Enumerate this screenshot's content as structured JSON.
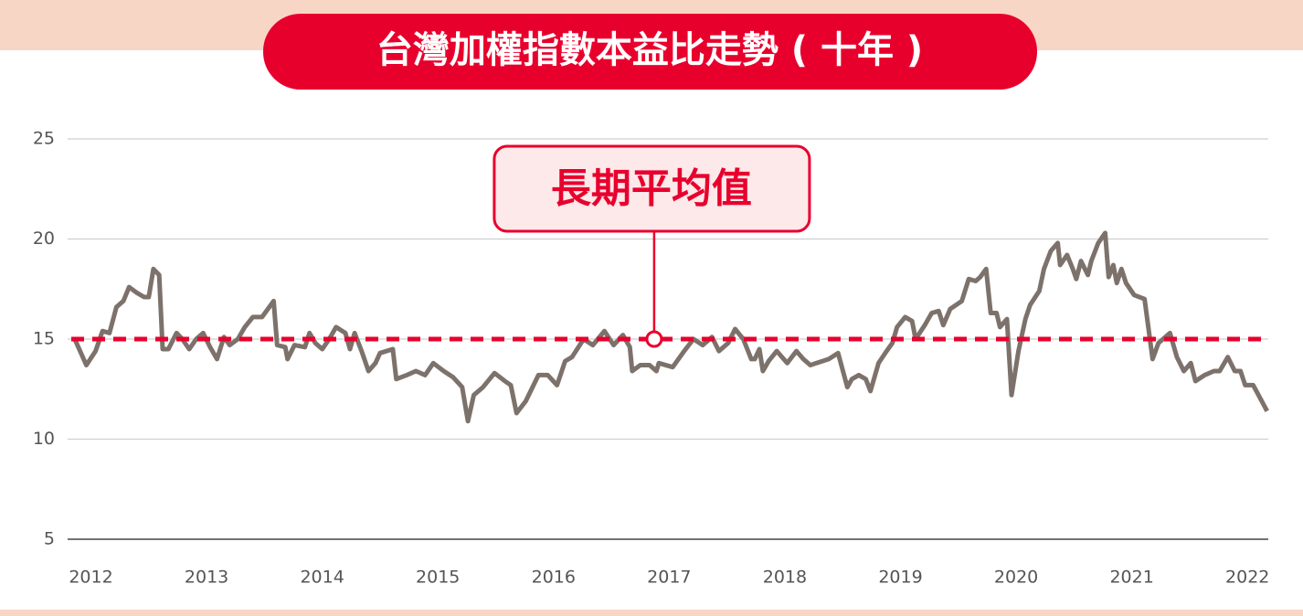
{
  "chart_data": {
    "type": "line",
    "title": "台灣加權指數本益比走勢 ( 十年 )",
    "color": "#7d726b",
    "xlim": [
      2011.83,
      2022.18
    ],
    "xticks": [
      2012,
      2013,
      2014,
      2015,
      2016,
      2017,
      2018,
      2019,
      2020,
      2021,
      2022
    ],
    "ylim": [
      5,
      25
    ],
    "yticks": [
      5,
      10,
      15,
      20,
      25
    ],
    "grid": true,
    "reference_line": {
      "value": 15,
      "label": "長期平均值",
      "label_x": 2016.87,
      "color": "#e8002d"
    },
    "x": [
      2011.86,
      2011.96,
      2012.04,
      2012.1,
      2012.16,
      2012.22,
      2012.28,
      2012.33,
      2012.4,
      2012.46,
      2012.5,
      2012.54,
      2012.59,
      2012.62,
      2012.67,
      2012.74,
      2012.79,
      2012.85,
      2012.91,
      2012.97,
      2013.03,
      2013.09,
      2013.15,
      2013.2,
      2013.27,
      2013.33,
      2013.4,
      2013.48,
      2013.58,
      2013.61,
      2013.68,
      2013.7,
      2013.76,
      2013.85,
      2013.89,
      2013.94,
      2014.0,
      2014.06,
      2014.12,
      2014.2,
      2014.24,
      2014.28,
      2014.34,
      2014.4,
      2014.46,
      2014.5,
      2014.61,
      2014.64,
      2014.73,
      2014.81,
      2014.89,
      2014.96,
      2015.05,
      2015.13,
      2015.21,
      2015.26,
      2015.31,
      2015.39,
      2015.49,
      2015.58,
      2015.63,
      2015.68,
      2015.76,
      2015.87,
      2015.95,
      2016.03,
      2016.1,
      2016.16,
      2016.26,
      2016.34,
      2016.44,
      2016.52,
      2016.6,
      2016.66,
      2016.68,
      2016.75,
      2016.83,
      2016.89,
      2016.91,
      2017.03,
      2017.13,
      2017.21,
      2017.29,
      2017.37,
      2017.43,
      2017.51,
      2017.57,
      2017.64,
      2017.71,
      2017.74,
      2017.78,
      2017.81,
      2017.86,
      2017.93,
      2018.02,
      2018.1,
      2018.16,
      2018.22,
      2018.38,
      2018.46,
      2018.54,
      2018.58,
      2018.64,
      2018.7,
      2018.74,
      2018.81,
      2018.88,
      2018.93,
      2018.97,
      2019.04,
      2019.1,
      2019.13,
      2019.21,
      2019.27,
      2019.33,
      2019.37,
      2019.43,
      2019.53,
      2019.59,
      2019.65,
      2019.69,
      2019.74,
      2019.78,
      2019.83,
      2019.86,
      2019.92,
      2019.96,
      2020.02,
      2020.08,
      2020.12,
      2020.2,
      2020.24,
      2020.3,
      2020.36,
      2020.38,
      2020.44,
      2020.49,
      2020.52,
      2020.56,
      2020.62,
      2020.65,
      2020.71,
      2020.77,
      2020.8,
      2020.84,
      2020.87,
      2020.91,
      2020.95,
      2021.02,
      2021.11,
      2021.18,
      2021.23,
      2021.33,
      2021.39,
      2021.45,
      2021.51,
      2021.55,
      2021.63,
      2021.71,
      2021.76,
      2021.83,
      2021.89,
      2021.94,
      2021.98,
      2022.05,
      2022.17
    ],
    "values": [
      15.0,
      13.7,
      14.4,
      15.4,
      15.3,
      16.6,
      16.9,
      17.6,
      17.3,
      17.1,
      17.1,
      18.5,
      18.2,
      14.5,
      14.5,
      15.3,
      15.0,
      14.5,
      15.0,
      15.3,
      14.6,
      14.0,
      15.1,
      14.7,
      15.0,
      15.6,
      16.1,
      16.1,
      16.9,
      14.7,
      14.6,
      14.0,
      14.7,
      14.6,
      15.3,
      14.8,
      14.5,
      15.0,
      15.6,
      15.3,
      14.5,
      15.3,
      14.4,
      13.4,
      13.8,
      14.3,
      14.5,
      13.0,
      13.2,
      13.4,
      13.2,
      13.8,
      13.4,
      13.1,
      12.6,
      10.9,
      12.2,
      12.6,
      13.3,
      12.9,
      12.7,
      11.3,
      11.9,
      13.2,
      13.2,
      12.7,
      13.9,
      14.1,
      15.0,
      14.7,
      15.4,
      14.7,
      15.2,
      14.6,
      13.4,
      13.7,
      13.7,
      13.4,
      13.8,
      13.6,
      14.4,
      15.0,
      14.7,
      15.1,
      14.4,
      14.8,
      15.5,
      15.0,
      14.0,
      14.0,
      14.5,
      13.4,
      13.9,
      14.4,
      13.8,
      14.4,
      14.0,
      13.7,
      14.0,
      14.3,
      12.6,
      13.0,
      13.2,
      13.0,
      12.4,
      13.8,
      14.4,
      14.8,
      15.6,
      16.1,
      15.9,
      15.0,
      15.7,
      16.3,
      16.4,
      15.7,
      16.5,
      16.9,
      18.0,
      17.9,
      18.1,
      18.5,
      16.3,
      16.3,
      15.6,
      16.0,
      12.2,
      14.4,
      16.0,
      16.7,
      17.4,
      18.5,
      19.4,
      19.8,
      18.7,
      19.2,
      18.5,
      18.0,
      18.9,
      18.2,
      18.9,
      19.8,
      20.3,
      18.1,
      18.7,
      17.8,
      18.5,
      17.8,
      17.2,
      17.0,
      14.0,
      14.8,
      15.3,
      14.1,
      13.4,
      13.8,
      12.9,
      13.2,
      13.4,
      13.4,
      14.1,
      13.4,
      13.4,
      12.7,
      12.7,
      11.4
    ]
  }
}
